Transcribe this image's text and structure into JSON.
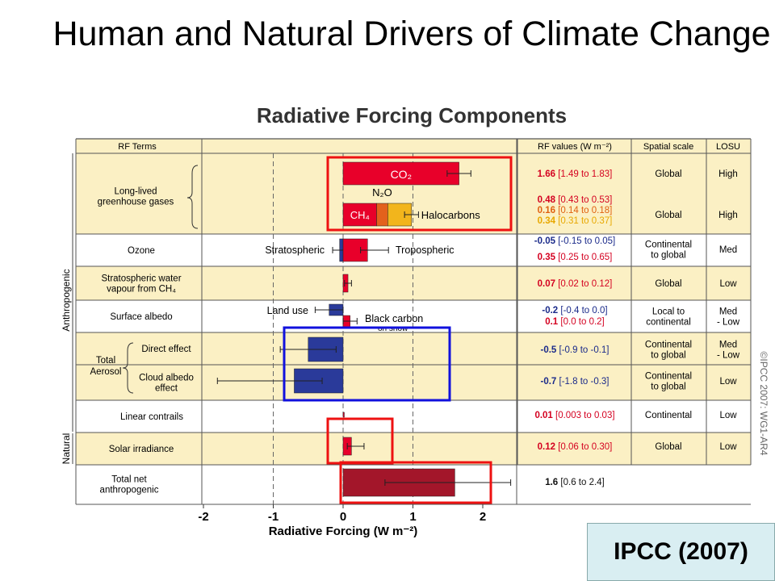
{
  "slide": {
    "title": "Human and Natural Drivers of Climate Change",
    "source_label": "IPCC (2007)"
  },
  "chart_data": {
    "type": "bar",
    "title": "Radiative Forcing Components",
    "xlabel": "Radiative Forcing (W m⁻²)",
    "xlim": [
      -2,
      2
    ],
    "xticks": [
      "-2",
      "-1",
      "0",
      "1",
      "2"
    ],
    "grid": "dashed vertical lines at -1 and 1",
    "columns": [
      "RF Terms",
      "RF values (W m⁻²)",
      "Spatial scale",
      "LOSU"
    ],
    "groups": [
      "Anthropogenic",
      "Natural"
    ],
    "copyright": "©IPCC 2007: WG1-AR4",
    "colors": {
      "warm": "#e8002a",
      "cool": "#2a3a9a",
      "n2o": "#e3611c",
      "halo": "#f2b51c",
      "total": "#a3162a",
      "band": "#fbf0c4"
    },
    "rows": [
      {
        "term": [
          "Long-lived",
          "greenhouse gases"
        ],
        "group": "Anthropogenic",
        "components": [
          {
            "label": "CO₂",
            "value": 1.66,
            "range": [
              1.49,
              1.83
            ],
            "value_text": "1.66",
            "range_text": "[1.49 to 1.83]",
            "color_key": "warm"
          },
          {
            "label": "CH₄",
            "value": 0.48,
            "range": [
              0.43,
              0.53
            ],
            "value_text": "0.48",
            "range_text": "[0.43 to 0.53]",
            "color_key": "warm"
          },
          {
            "label": "N₂O",
            "value": 0.16,
            "range": [
              0.14,
              0.18
            ],
            "value_text": "0.16",
            "range_text": "[0.14 to 0.18]",
            "color_key": "n2o"
          },
          {
            "label": "Halocarbons",
            "value": 0.34,
            "range": [
              0.31,
              0.37
            ],
            "value_text": "0.34",
            "range_text": "[0.31 to 0.37]",
            "color_key": "halo"
          }
        ],
        "scale": "Global",
        "losu": "High"
      },
      {
        "term": [
          "Ozone"
        ],
        "group": "Anthropogenic",
        "components": [
          {
            "label": "Stratospheric",
            "value": -0.05,
            "range": [
              -0.15,
              0.05
            ],
            "value_text": "-0.05",
            "range_text": "[-0.15 to 0.05]",
            "color_key": "cool"
          },
          {
            "label": "Tropospheric",
            "value": 0.35,
            "range": [
              0.25,
              0.65
            ],
            "value_text": "0.35",
            "range_text": "[0.25 to 0.65]",
            "color_key": "warm"
          }
        ],
        "scale": "Continental to global",
        "losu": "Med"
      },
      {
        "term": [
          "Stratospheric water",
          "vapour from CH₄"
        ],
        "group": "Anthropogenic",
        "components": [
          {
            "label": "",
            "value": 0.07,
            "range": [
              0.02,
              0.12
            ],
            "value_text": "0.07",
            "range_text": "[0.02 to 0.12]",
            "color_key": "warm"
          }
        ],
        "scale": "Global",
        "losu": "Low"
      },
      {
        "term": [
          "Surface albedo"
        ],
        "group": "Anthropogenic",
        "components": [
          {
            "label": "Land use",
            "value": -0.2,
            "range": [
              -0.4,
              0.0
            ],
            "value_text": "-0.2",
            "range_text": "[-0.4 to 0.0]",
            "color_key": "cool"
          },
          {
            "label": "Black carbon on snow",
            "value": 0.1,
            "range": [
              0.0,
              0.2
            ],
            "value_text": "0.1",
            "range_text": "[0.0 to 0.2]",
            "color_key": "warm"
          }
        ],
        "scale": "Local to continental",
        "losu": "Med - Low"
      },
      {
        "term": [
          "Direct effect"
        ],
        "parent": "Total Aerosol",
        "group": "Anthropogenic",
        "components": [
          {
            "label": "",
            "value": -0.5,
            "range": [
              -0.9,
              -0.1
            ],
            "value_text": "-0.5",
            "range_text": "[-0.9 to -0.1]",
            "color_key": "cool"
          }
        ],
        "scale": "Continental to global",
        "losu": "Med - Low"
      },
      {
        "term": [
          "Cloud albedo",
          "effect"
        ],
        "parent": "Total Aerosol",
        "group": "Anthropogenic",
        "components": [
          {
            "label": "",
            "value": -0.7,
            "range": [
              -1.8,
              -0.3
            ],
            "value_text": "-0.7",
            "range_text": "[-1.8 to -0.3]",
            "color_key": "cool"
          }
        ],
        "scale": "Continental to global",
        "losu": "Low"
      },
      {
        "term": [
          "Linear contrails"
        ],
        "group": "Anthropogenic",
        "components": [
          {
            "label": "",
            "value": 0.01,
            "range": [
              0.003,
              0.03
            ],
            "value_text": "0.01",
            "range_text": "[0.003 to 0.03]",
            "color_key": "warm"
          }
        ],
        "scale": "Continental",
        "losu": "Low"
      },
      {
        "term": [
          "Solar irradiance"
        ],
        "group": "Natural",
        "components": [
          {
            "label": "",
            "value": 0.12,
            "range": [
              0.06,
              0.3
            ],
            "value_text": "0.12",
            "range_text": "[0.06 to 0.30]",
            "color_key": "warm"
          }
        ],
        "scale": "Global",
        "losu": "Low"
      },
      {
        "term": [
          "Total net",
          "anthropogenic"
        ],
        "group": "",
        "components": [
          {
            "label": "",
            "value": 1.6,
            "range": [
              0.6,
              2.4
            ],
            "value_text": "1.6",
            "range_text": "[0.6 to 2.4]",
            "color_key": "total"
          }
        ],
        "scale": "",
        "losu": ""
      }
    ]
  }
}
